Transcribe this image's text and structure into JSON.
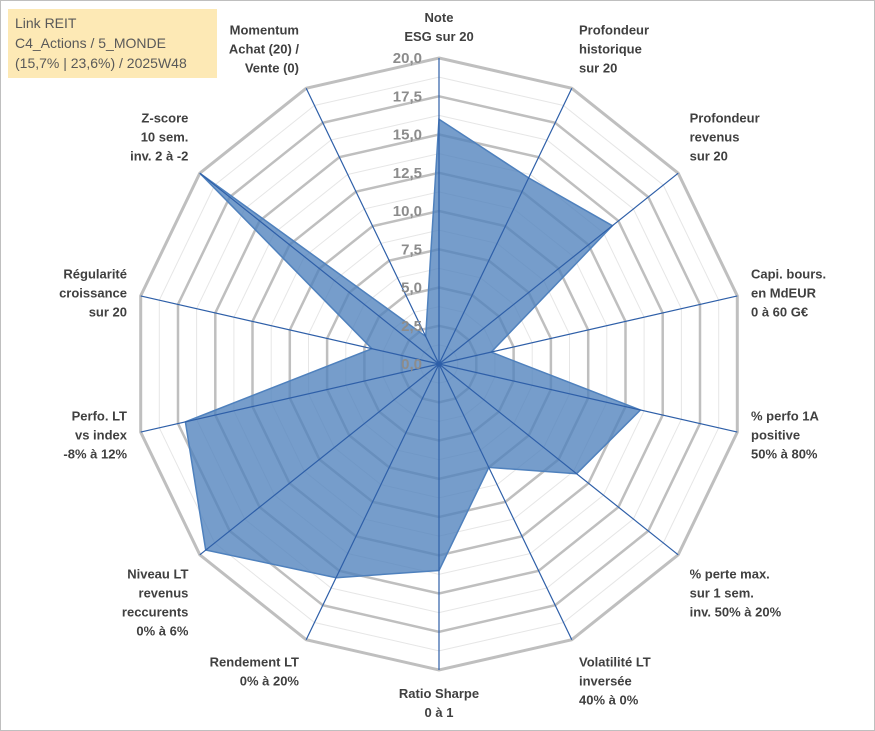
{
  "title_lines": [
    "Link REIT",
    "C4_Actions / 5_MONDE",
    "(15,7% | 23,6%) / 2025W48"
  ],
  "colors": {
    "fill": "#4f81bd",
    "spoke": "#2e5fa8",
    "grid_major": "#bfbfbf",
    "grid_minor": "#e6e6e6"
  },
  "chart_data": {
    "type": "radar",
    "title": "",
    "rmin": 0,
    "rmax": 20,
    "ticks": [
      "0,0",
      "2,5",
      "5,0",
      "7,5",
      "10,0",
      "12,5",
      "15,0",
      "17,5",
      "20,0"
    ],
    "tick_values": [
      0,
      2.5,
      5,
      7.5,
      10,
      12.5,
      15,
      17.5,
      20
    ],
    "axes": [
      {
        "label": [
          "Note",
          "ESG sur 20"
        ],
        "value": 16
      },
      {
        "label": [
          "Profondeur",
          "historique",
          "sur 20"
        ],
        "value": 13.5
      },
      {
        "label": [
          "Profondeur",
          "revenus",
          "sur 20"
        ],
        "value": 14.5
      },
      {
        "label": [
          "Capi. bours.",
          "en MdEUR",
          "0 à 60 G€"
        ],
        "value": 3.5
      },
      {
        "label": [
          "% perfo 1A",
          "positive",
          "50% à 80%"
        ],
        "value": 13.5
      },
      {
        "label": [
          "% perte max.",
          "sur 1 sem.",
          "inv. 50% à 20%"
        ],
        "value": 11.5
      },
      {
        "label": [
          "Volatilité LT",
          "inversée",
          "40% à 0%"
        ],
        "value": 7.5
      },
      {
        "label": [
          "Ratio Sharpe",
          "0 à 1"
        ],
        "value": 13.5
      },
      {
        "label": [
          "Rendement LT",
          "0% à 20%"
        ],
        "value": 15.5
      },
      {
        "label": [
          "Niveau LT",
          "revenus",
          "reccurents",
          "0% à 6%"
        ],
        "value": 19.5
      },
      {
        "label": [
          "Perfo. LT",
          "vs index",
          "-8% à 12%"
        ],
        "value": 17
      },
      {
        "label": [
          "Régularité",
          "croissance",
          "sur 20"
        ],
        "value": 4.5
      },
      {
        "label": [
          "Z-score",
          "10 sem.",
          "inv. 2 à -2"
        ],
        "value": 20
      },
      {
        "label": [
          "Momentum",
          "Achat (20) /",
          "Vente (0)"
        ],
        "value": 2
      }
    ]
  }
}
